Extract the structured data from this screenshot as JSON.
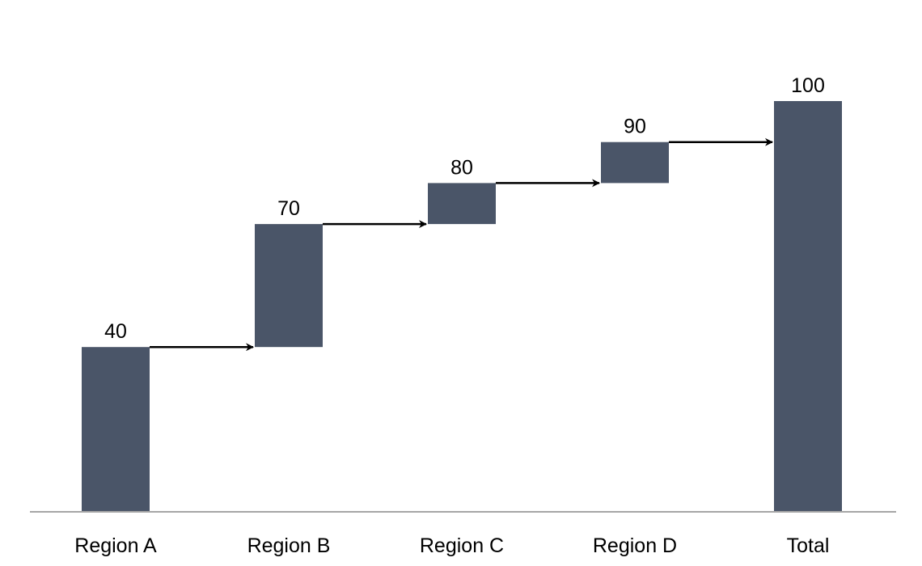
{
  "chart_data": {
    "type": "bar",
    "subtype": "waterfall",
    "categories": [
      "Region A",
      "Region B",
      "Region C",
      "Region D",
      "Total"
    ],
    "labels": [
      "40",
      "70",
      "80",
      "90",
      "100"
    ],
    "cumulative": [
      40,
      70,
      80,
      90,
      100
    ],
    "values": [
      40,
      30,
      10,
      10,
      100
    ],
    "bar_bases": [
      0,
      40,
      70,
      80,
      0
    ],
    "ylim": [
      0,
      100
    ],
    "grid": false,
    "legend": false,
    "connector_arrows": true,
    "title": "",
    "xlabel": "",
    "ylabel": ""
  },
  "colors": {
    "bar": "#4a5568",
    "axis": "#a6a6a6",
    "arrow": "#000000",
    "text": "#000000"
  }
}
